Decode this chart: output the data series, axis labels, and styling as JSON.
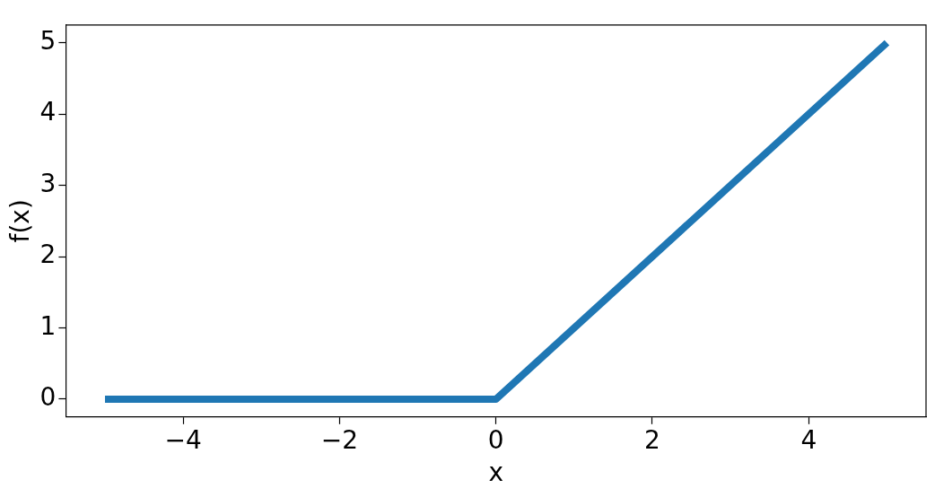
{
  "chart_data": {
    "type": "line",
    "xlabel": "x",
    "ylabel": "f(x)",
    "x": [
      -5,
      0,
      5
    ],
    "series": [
      {
        "color": "#1f77b4",
        "values": [
          0,
          0,
          5
        ]
      }
    ],
    "xlim": [
      -5.5,
      5.5
    ],
    "ylim": [
      -0.25,
      5.25
    ],
    "xticks": [
      {
        "value": -4,
        "label": "−4"
      },
      {
        "value": -2,
        "label": "−2"
      },
      0,
      2,
      4
    ],
    "yticks": [
      0,
      1,
      2,
      3,
      4,
      5
    ],
    "grid": false,
    "legend": false,
    "marker": "none",
    "line_style": "solid"
  }
}
